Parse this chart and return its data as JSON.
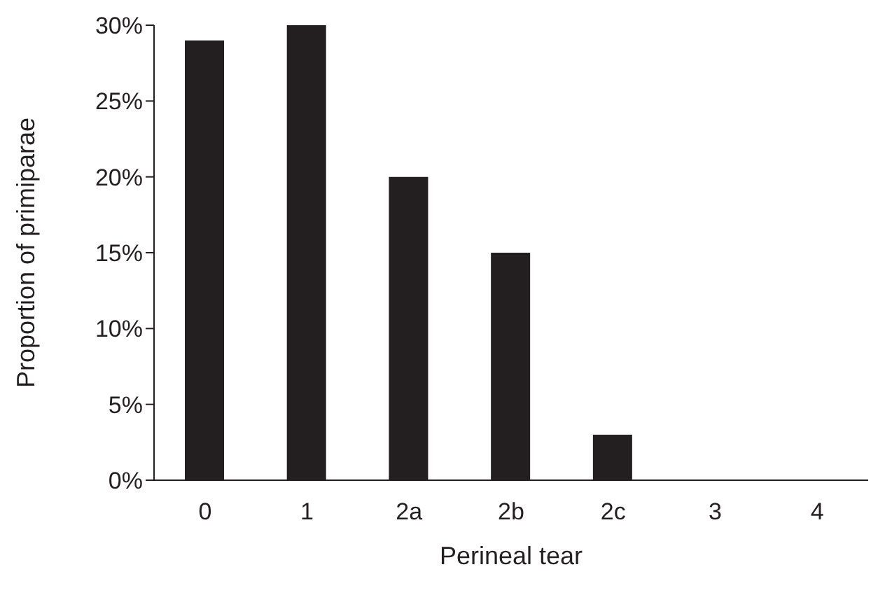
{
  "chart_data": {
    "type": "bar",
    "xlabel": "Perineal tear",
    "ylabel": "Proportion of primiparae",
    "categories": [
      "0",
      "1",
      "2a",
      "2b",
      "2c",
      "3",
      "4"
    ],
    "values": [
      29,
      30,
      20,
      15,
      3,
      0,
      0
    ],
    "color": "#231f20",
    "ylim": [
      0,
      30
    ],
    "yticks": [
      {
        "value": 0,
        "label": "0%"
      },
      {
        "value": 5,
        "label": "5%"
      },
      {
        "value": 10,
        "label": "10%"
      },
      {
        "value": 15,
        "label": "15%"
      },
      {
        "value": 20,
        "label": "20%"
      },
      {
        "value": 25,
        "label": "25%"
      },
      {
        "value": 30,
        "label": "30%"
      }
    ],
    "grid": false,
    "legend": false
  }
}
